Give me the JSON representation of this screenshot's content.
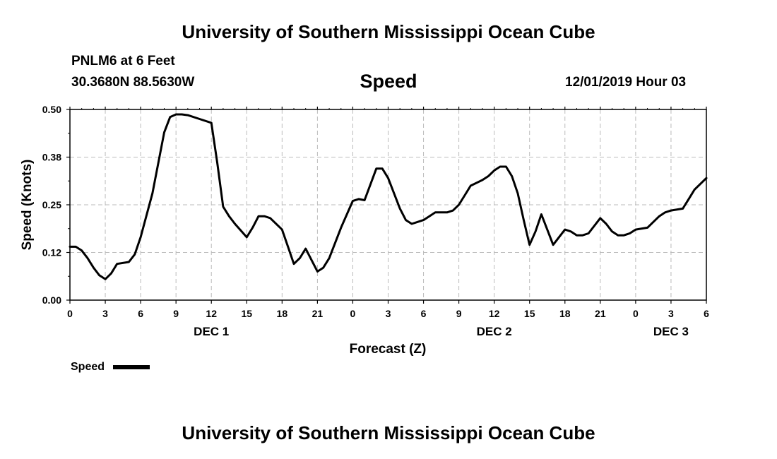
{
  "header": {
    "title": "University of Southern Mississippi Ocean Cube",
    "station": "PNLM6 at 6 Feet",
    "coords": "30.3680N 88.5630W",
    "datetime": "12/01/2019 Hour 03"
  },
  "footer": {
    "title": "University of Southern Mississippi Ocean Cube"
  },
  "colors": {
    "line": "#000000",
    "grid": "#bbbbbb",
    "background": "#ffffff"
  },
  "chart_data": {
    "type": "line",
    "title": "Speed",
    "xlabel": "Forecast (Z)",
    "ylabel": "Speed (Knots)",
    "xlim": [
      0,
      54
    ],
    "ylim": [
      0,
      0.5
    ],
    "grid": true,
    "yticks": [
      0,
      0.125,
      0.25,
      0.375,
      0.5
    ],
    "ytick_labels": [
      "0.00",
      "0.12",
      "0.25",
      "0.38",
      "0.50"
    ],
    "xticks": [
      0,
      3,
      6,
      9,
      12,
      15,
      18,
      21,
      24,
      27,
      30,
      33,
      36,
      39,
      42,
      45,
      48,
      51,
      54
    ],
    "xtick_labels": [
      "0",
      "3",
      "6",
      "9",
      "12",
      "15",
      "18",
      "21",
      "0",
      "3",
      "6",
      "9",
      "12",
      "15",
      "18",
      "21",
      "0",
      "3",
      "6"
    ],
    "day_labels": [
      {
        "label": "DEC 1",
        "x": 12
      },
      {
        "label": "DEC 2",
        "x": 36
      },
      {
        "label": "DEC 3",
        "x": 51
      }
    ],
    "legend": {
      "label": "Speed",
      "placement": "bottom-left"
    },
    "series": [
      {
        "name": "Speed",
        "x": [
          0,
          0.5,
          1,
          1.5,
          2,
          2.5,
          3,
          3.5,
          4,
          5,
          5.5,
          6,
          7,
          8,
          8.5,
          9,
          9.5,
          10,
          11,
          12,
          12.5,
          13,
          13.5,
          14,
          15,
          15.5,
          16,
          16.5,
          17,
          18,
          18.5,
          19,
          19.5,
          20,
          21,
          21.5,
          22,
          23,
          24,
          24.5,
          25,
          26,
          26.5,
          27,
          28,
          28.5,
          29,
          29.5,
          30,
          30.5,
          31,
          32,
          32.5,
          33,
          33.5,
          34,
          35,
          35.5,
          36,
          36.5,
          37,
          37.5,
          38,
          38.5,
          39,
          39.5,
          40,
          41,
          41.5,
          42,
          42.5,
          43,
          43.5,
          44,
          45,
          45.5,
          46,
          46.5,
          47,
          47.5,
          48,
          49,
          50,
          50.5,
          51,
          52,
          52.5,
          53,
          54
        ],
        "values": [
          0.14,
          0.14,
          0.13,
          0.11,
          0.085,
          0.065,
          0.055,
          0.07,
          0.095,
          0.1,
          0.12,
          0.165,
          0.28,
          0.44,
          0.48,
          0.487,
          0.487,
          0.485,
          0.475,
          0.465,
          0.36,
          0.245,
          0.22,
          0.2,
          0.165,
          0.19,
          0.22,
          0.22,
          0.215,
          0.185,
          0.14,
          0.095,
          0.11,
          0.135,
          0.075,
          0.085,
          0.11,
          0.19,
          0.26,
          0.265,
          0.262,
          0.345,
          0.345,
          0.32,
          0.24,
          0.21,
          0.2,
          0.205,
          0.21,
          0.22,
          0.23,
          0.23,
          0.235,
          0.25,
          0.275,
          0.3,
          0.315,
          0.325,
          0.34,
          0.35,
          0.35,
          0.325,
          0.28,
          0.21,
          0.145,
          0.18,
          0.225,
          0.145,
          0.165,
          0.185,
          0.18,
          0.17,
          0.17,
          0.175,
          0.215,
          0.2,
          0.18,
          0.17,
          0.17,
          0.175,
          0.185,
          0.19,
          0.22,
          0.23,
          0.235,
          0.24,
          0.265,
          0.29,
          0.32
        ]
      }
    ]
  }
}
